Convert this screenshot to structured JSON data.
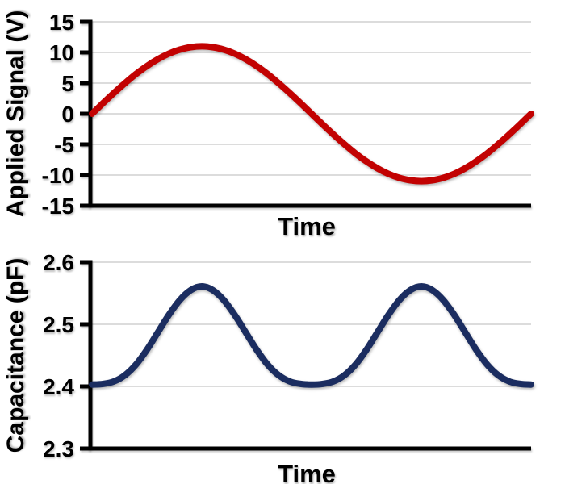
{
  "figure": {
    "background": "#ffffff"
  },
  "chart_data": [
    {
      "type": "line",
      "title": "",
      "xlabel": "Time",
      "ylabel": "Applied Signal (V)",
      "xlim": [
        0,
        1
      ],
      "ylim": [
        -15,
        15
      ],
      "yticks": [
        "15",
        "10",
        "5",
        "0",
        "-5",
        "-10",
        "-15"
      ],
      "xticks": [],
      "grid": "horizontal",
      "grid_color": "#dcdcdc",
      "axis_color": "#000000",
      "legend": "none",
      "series": [
        {
          "name": "applied-signal",
          "color": "#c20202",
          "line_width": 8,
          "x": [
            0,
            0.025,
            0.05,
            0.075,
            0.1,
            0.125,
            0.15,
            0.175,
            0.2,
            0.225,
            0.25,
            0.275,
            0.3,
            0.325,
            0.35,
            0.375,
            0.4,
            0.425,
            0.45,
            0.475,
            0.5,
            0.525,
            0.55,
            0.575,
            0.6,
            0.625,
            0.65,
            0.675,
            0.7,
            0.725,
            0.75,
            0.775,
            0.8,
            0.825,
            0.85,
            0.875,
            0.9,
            0.925,
            0.95,
            0.975,
            1
          ],
          "y": [
            0,
            1.72,
            3.4,
            4.99,
            6.47,
            7.78,
            8.9,
            9.8,
            10.46,
            10.86,
            11,
            10.86,
            10.46,
            9.8,
            8.9,
            7.78,
            6.47,
            4.99,
            3.4,
            1.72,
            0,
            -1.72,
            -3.4,
            -4.99,
            -6.47,
            -7.78,
            -8.9,
            -9.8,
            -10.46,
            -10.86,
            -11,
            -10.86,
            -10.46,
            -9.8,
            -8.9,
            -7.78,
            -6.47,
            -4.99,
            -3.4,
            -1.72,
            0
          ]
        }
      ]
    },
    {
      "type": "line",
      "title": "",
      "xlabel": "Time",
      "ylabel": "Capacitance (pF)",
      "xlim": [
        0,
        1
      ],
      "ylim": [
        2.3,
        2.6
      ],
      "yticks": [
        "2.6",
        "2.5",
        "2.4",
        "2.3"
      ],
      "xticks": [],
      "grid": "horizontal",
      "grid_color": "#dcdcdc",
      "axis_color": "#000000",
      "legend": "none",
      "series": [
        {
          "name": "capacitance",
          "color": "#1b2d60",
          "line_width": 8,
          "x": [
            0,
            0.025,
            0.05,
            0.075,
            0.1,
            0.125,
            0.15,
            0.175,
            0.2,
            0.225,
            0.25,
            0.275,
            0.3,
            0.325,
            0.35,
            0.375,
            0.4,
            0.425,
            0.45,
            0.475,
            0.5,
            0.525,
            0.55,
            0.575,
            0.6,
            0.625,
            0.65,
            0.675,
            0.7,
            0.725,
            0.75,
            0.775,
            0.8,
            0.825,
            0.85,
            0.875,
            0.9,
            0.925,
            0.95,
            0.975,
            1
          ],
          "y": [
            2.403,
            2.404,
            2.408,
            2.418,
            2.435,
            2.459,
            2.487,
            2.515,
            2.539,
            2.555,
            2.561,
            2.555,
            2.539,
            2.515,
            2.487,
            2.459,
            2.435,
            2.418,
            2.408,
            2.404,
            2.403,
            2.404,
            2.408,
            2.418,
            2.435,
            2.459,
            2.487,
            2.515,
            2.539,
            2.555,
            2.561,
            2.555,
            2.539,
            2.515,
            2.487,
            2.459,
            2.435,
            2.418,
            2.408,
            2.404,
            2.403
          ]
        }
      ]
    }
  ]
}
